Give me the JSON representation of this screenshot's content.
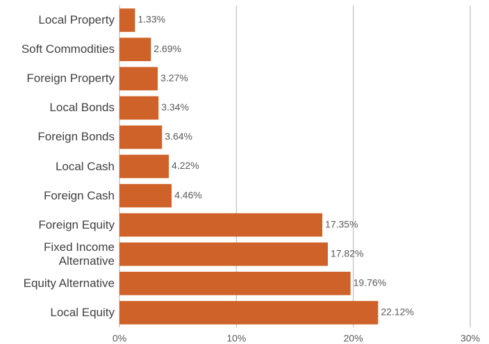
{
  "chart_data": {
    "type": "hbar",
    "categories": [
      "Local Property",
      "Soft Commodities",
      "Foreign Property",
      "Local Bonds",
      "Foreign Bonds",
      "Local Cash",
      "Foreign Cash",
      "Foreign Equity",
      "Fixed Income Alternative",
      "Equity Alternative",
      "Local Equity"
    ],
    "values": [
      1.33,
      2.69,
      3.27,
      3.34,
      3.64,
      4.22,
      4.46,
      17.35,
      17.82,
      19.76,
      22.12
    ],
    "value_labels": [
      "1.33%",
      "2.69%",
      "3.27%",
      "3.34%",
      "3.64%",
      "4.22%",
      "4.46%",
      "17.35%",
      "17.82%",
      "19.76%",
      "22.12%"
    ],
    "color": "#cf6229",
    "xlim": [
      0,
      30
    ],
    "xticks": [
      {
        "value": 0,
        "label": "0%"
      },
      {
        "value": 10,
        "label": "10%"
      },
      {
        "value": 20,
        "label": "20%"
      },
      {
        "value": 30,
        "label": "30%"
      }
    ],
    "grid": true
  }
}
